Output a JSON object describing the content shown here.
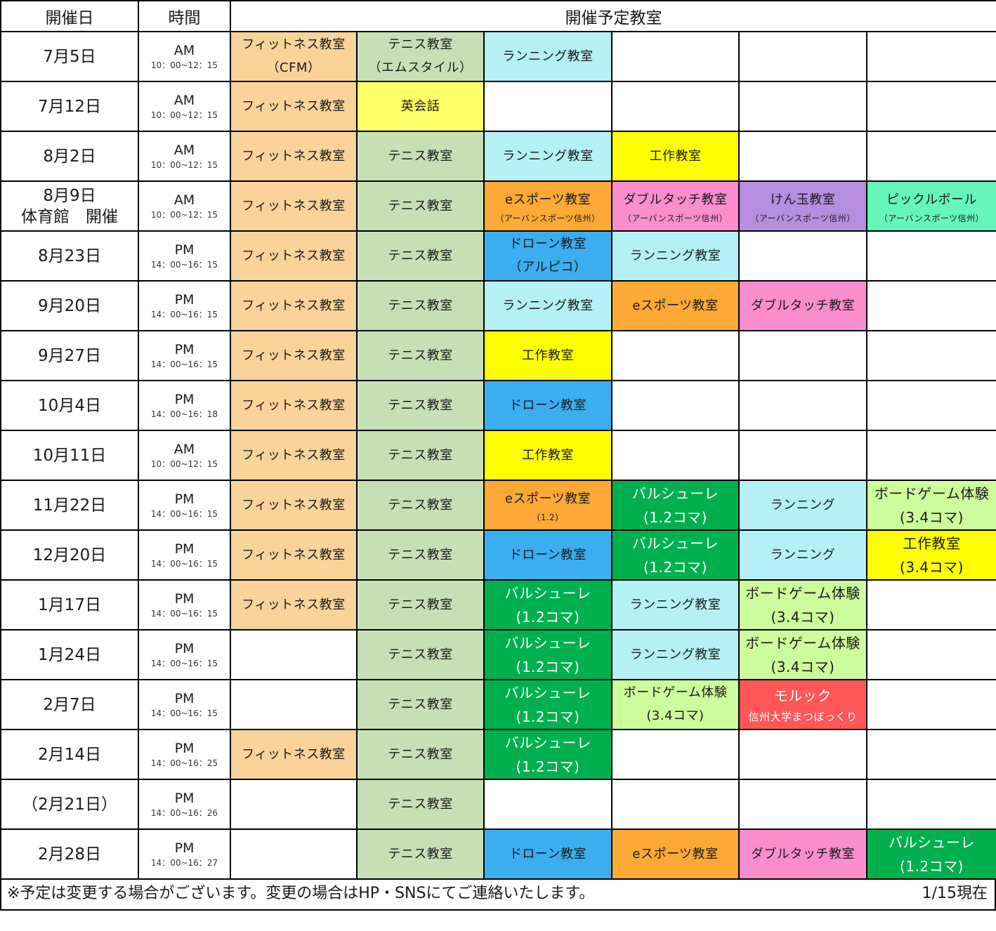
{
  "header": {
    "date_label": "開催日",
    "time_label": "時間",
    "classes_label": "開催予定教室"
  },
  "colors": {
    "fitness": "#F8D39A",
    "tennis": "#C6DFB4",
    "running": "#B5F0F7",
    "english": "#FFFF66",
    "craft": "#FFFF00",
    "esports": "#FCA935",
    "doubletouch": "#FA8ECD",
    "kendama": "#B68EDF",
    "pickleball": "#66F5BA",
    "drone": "#3AAEEF",
    "barcelona": "#00B04F",
    "boardgame": "#CDFC9C",
    "molkky": "#FF5757",
    "empty": "#FFFFFF"
  },
  "rows": [
    {
      "date": "7月5日",
      "date2": "",
      "ampm": "AM",
      "hours": "10：00~12：15",
      "cells": [
        {
          "l1": "フィットネス教室",
          "l2": "（CFM）",
          "sub": "",
          "color": "fitness",
          "style": "two"
        },
        {
          "l1": "テニス教室",
          "l2": "（エムスタイル）",
          "sub": "",
          "color": "tennis",
          "style": "two"
        },
        {
          "l1": "ランニング教室",
          "l2": "",
          "sub": "",
          "color": "running",
          "style": ""
        },
        {
          "l1": "",
          "l2": "",
          "sub": "",
          "color": "empty",
          "style": ""
        },
        {
          "l1": "",
          "l2": "",
          "sub": "",
          "color": "empty",
          "style": ""
        },
        {
          "l1": "",
          "l2": "",
          "sub": "",
          "color": "empty",
          "style": ""
        }
      ]
    },
    {
      "date": "7月12日",
      "date2": "",
      "ampm": "AM",
      "hours": "10：00~12：15",
      "cells": [
        {
          "l1": "フィットネス教室",
          "l2": "",
          "sub": "",
          "color": "fitness",
          "style": ""
        },
        {
          "l1": "英会話",
          "l2": "",
          "sub": "",
          "color": "english",
          "style": ""
        },
        {
          "l1": "",
          "l2": "",
          "sub": "",
          "color": "empty",
          "style": ""
        },
        {
          "l1": "",
          "l2": "",
          "sub": "",
          "color": "empty",
          "style": ""
        },
        {
          "l1": "",
          "l2": "",
          "sub": "",
          "color": "empty",
          "style": ""
        },
        {
          "l1": "",
          "l2": "",
          "sub": "",
          "color": "empty",
          "style": ""
        }
      ]
    },
    {
      "date": "8月2日",
      "date2": "",
      "ampm": "AM",
      "hours": "10：00~12：15",
      "cells": [
        {
          "l1": "フィットネス教室",
          "l2": "",
          "sub": "",
          "color": "fitness",
          "style": ""
        },
        {
          "l1": "テニス教室",
          "l2": "",
          "sub": "",
          "color": "tennis",
          "style": ""
        },
        {
          "l1": "ランニング教室",
          "l2": "",
          "sub": "",
          "color": "running",
          "style": ""
        },
        {
          "l1": "工作教室",
          "l2": "",
          "sub": "",
          "color": "craft",
          "style": ""
        },
        {
          "l1": "",
          "l2": "",
          "sub": "",
          "color": "empty",
          "style": ""
        },
        {
          "l1": "",
          "l2": "",
          "sub": "",
          "color": "empty",
          "style": ""
        }
      ]
    },
    {
      "date": "8月9日",
      "date2": "体育館　開催",
      "ampm": "AM",
      "hours": "10：00~12：15",
      "cells": [
        {
          "l1": "フィットネス教室",
          "l2": "",
          "sub": "",
          "color": "fitness",
          "style": ""
        },
        {
          "l1": "テニス教室",
          "l2": "",
          "sub": "",
          "color": "tennis",
          "style": ""
        },
        {
          "l1": "eスポーツ教室",
          "l2": "",
          "sub": "（アーバンスポーツ信州）",
          "color": "esports",
          "style": ""
        },
        {
          "l1": "ダブルタッチ教室",
          "l2": "",
          "sub": "（アーバンスポーツ信州）",
          "color": "doubletouch",
          "style": ""
        },
        {
          "l1": "けん玉教室",
          "l2": "",
          "sub": "（アーバンスポーツ信州）",
          "color": "kendama",
          "style": ""
        },
        {
          "l1": "ピックルボール",
          "l2": "",
          "sub": "（アーバンスポーツ信州）",
          "color": "pickleball",
          "style": ""
        }
      ]
    },
    {
      "date": "8月23日",
      "date2": "",
      "ampm": "PM",
      "hours": "14：00~16：15",
      "cells": [
        {
          "l1": "フィットネス教室",
          "l2": "",
          "sub": "",
          "color": "fitness",
          "style": ""
        },
        {
          "l1": "テニス教室",
          "l2": "",
          "sub": "",
          "color": "tennis",
          "style": ""
        },
        {
          "l1": "ドローン教室",
          "l2": "（アルピコ）",
          "sub": "",
          "color": "drone",
          "style": "two"
        },
        {
          "l1": "ランニング教室",
          "l2": "",
          "sub": "",
          "color": "running",
          "style": ""
        },
        {
          "l1": "",
          "l2": "",
          "sub": "",
          "color": "empty",
          "style": ""
        },
        {
          "l1": "",
          "l2": "",
          "sub": "",
          "color": "empty",
          "style": ""
        }
      ]
    },
    {
      "date": "9月20日",
      "date2": "",
      "ampm": "PM",
      "hours": "14：00~16：15",
      "cells": [
        {
          "l1": "フィットネス教室",
          "l2": "",
          "sub": "",
          "color": "fitness",
          "style": ""
        },
        {
          "l1": "テニス教室",
          "l2": "",
          "sub": "",
          "color": "tennis",
          "style": ""
        },
        {
          "l1": "ランニング教室",
          "l2": "",
          "sub": "",
          "color": "running",
          "style": ""
        },
        {
          "l1": "eスポーツ教室",
          "l2": "",
          "sub": "",
          "color": "esports",
          "style": ""
        },
        {
          "l1": "ダブルタッチ教室",
          "l2": "",
          "sub": "",
          "color": "doubletouch",
          "style": ""
        },
        {
          "l1": "",
          "l2": "",
          "sub": "",
          "color": "empty",
          "style": ""
        }
      ]
    },
    {
      "date": "9月27日",
      "date2": "",
      "ampm": "PM",
      "hours": "14：00~16：15",
      "cells": [
        {
          "l1": "フィットネス教室",
          "l2": "",
          "sub": "",
          "color": "fitness",
          "style": ""
        },
        {
          "l1": "テニス教室",
          "l2": "",
          "sub": "",
          "color": "tennis",
          "style": ""
        },
        {
          "l1": "工作教室",
          "l2": "",
          "sub": "",
          "color": "craft",
          "style": ""
        },
        {
          "l1": "",
          "l2": "",
          "sub": "",
          "color": "empty",
          "style": ""
        },
        {
          "l1": "",
          "l2": "",
          "sub": "",
          "color": "empty",
          "style": ""
        },
        {
          "l1": "",
          "l2": "",
          "sub": "",
          "color": "empty",
          "style": ""
        }
      ]
    },
    {
      "date": "10月4日",
      "date2": "",
      "ampm": "PM",
      "hours": "14：00~16：18",
      "cells": [
        {
          "l1": "フィットネス教室",
          "l2": "",
          "sub": "",
          "color": "fitness",
          "style": ""
        },
        {
          "l1": "テニス教室",
          "l2": "",
          "sub": "",
          "color": "tennis",
          "style": ""
        },
        {
          "l1": "ドローン教室",
          "l2": "",
          "sub": "",
          "color": "drone",
          "style": ""
        },
        {
          "l1": "",
          "l2": "",
          "sub": "",
          "color": "empty",
          "style": ""
        },
        {
          "l1": "",
          "l2": "",
          "sub": "",
          "color": "empty",
          "style": ""
        },
        {
          "l1": "",
          "l2": "",
          "sub": "",
          "color": "empty",
          "style": ""
        }
      ]
    },
    {
      "date": "10月11日",
      "date2": "",
      "ampm": "AM",
      "hours": "10：00~12：15",
      "cells": [
        {
          "l1": "フィットネス教室",
          "l2": "",
          "sub": "",
          "color": "fitness",
          "style": ""
        },
        {
          "l1": "テニス教室",
          "l2": "",
          "sub": "",
          "color": "tennis",
          "style": ""
        },
        {
          "l1": "工作教室",
          "l2": "",
          "sub": "",
          "color": "craft",
          "style": ""
        },
        {
          "l1": "",
          "l2": "",
          "sub": "",
          "color": "empty",
          "style": ""
        },
        {
          "l1": "",
          "l2": "",
          "sub": "",
          "color": "empty",
          "style": ""
        },
        {
          "l1": "",
          "l2": "",
          "sub": "",
          "color": "empty",
          "style": ""
        }
      ]
    },
    {
      "date": "11月22日",
      "date2": "",
      "ampm": "PM",
      "hours": "14：00~16：15",
      "cells": [
        {
          "l1": "フィットネス教室",
          "l2": "",
          "sub": "",
          "color": "fitness",
          "style": ""
        },
        {
          "l1": "テニス教室",
          "l2": "",
          "sub": "",
          "color": "tennis",
          "style": ""
        },
        {
          "l1": "eスポーツ教室",
          "l2": "",
          "sub": "(1.2)",
          "color": "esports",
          "style": ""
        },
        {
          "l1": "バルシューレ",
          "l2": "(1.2コマ)",
          "sub": "",
          "color": "barcelona",
          "style": "big white"
        },
        {
          "l1": "ランニング",
          "l2": "",
          "sub": "",
          "color": "running",
          "style": ""
        },
        {
          "l1": "ボードゲーム体験",
          "l2": "(3.4コマ)",
          "sub": "",
          "color": "boardgame",
          "style": "big"
        }
      ]
    },
    {
      "date": "12月20日",
      "date2": "",
      "ampm": "PM",
      "hours": "14：00~16：15",
      "cells": [
        {
          "l1": "フィットネス教室",
          "l2": "",
          "sub": "",
          "color": "fitness",
          "style": ""
        },
        {
          "l1": "テニス教室",
          "l2": "",
          "sub": "",
          "color": "tennis",
          "style": ""
        },
        {
          "l1": "ドローン教室",
          "l2": "",
          "sub": "",
          "color": "drone",
          "style": ""
        },
        {
          "l1": "バルシューレ",
          "l2": "(1.2コマ)",
          "sub": "",
          "color": "barcelona",
          "style": "big white"
        },
        {
          "l1": "ランニング",
          "l2": "",
          "sub": "",
          "color": "running",
          "style": ""
        },
        {
          "l1": "工作教室",
          "l2": "(3.4コマ)",
          "sub": "",
          "color": "craft",
          "style": "big"
        }
      ]
    },
    {
      "date": "1月17日",
      "date2": "",
      "ampm": "PM",
      "hours": "14：00~16：15",
      "cells": [
        {
          "l1": "フィットネス教室",
          "l2": "",
          "sub": "",
          "color": "fitness",
          "style": ""
        },
        {
          "l1": "テニス教室",
          "l2": "",
          "sub": "",
          "color": "tennis",
          "style": ""
        },
        {
          "l1": "バルシューレ",
          "l2": "(1.2コマ)",
          "sub": "",
          "color": "barcelona",
          "style": "big white"
        },
        {
          "l1": "ランニング教室",
          "l2": "",
          "sub": "",
          "color": "running",
          "style": ""
        },
        {
          "l1": "ボードゲーム体験",
          "l2": "(3.4コマ)",
          "sub": "",
          "color": "boardgame",
          "style": "big"
        },
        {
          "l1": "",
          "l2": "",
          "sub": "",
          "color": "empty",
          "style": ""
        }
      ]
    },
    {
      "date": "1月24日",
      "date2": "",
      "ampm": "PM",
      "hours": "14：00~16：15",
      "cells": [
        {
          "l1": "",
          "l2": "",
          "sub": "",
          "color": "empty",
          "style": ""
        },
        {
          "l1": "テニス教室",
          "l2": "",
          "sub": "",
          "color": "tennis",
          "style": ""
        },
        {
          "l1": "バルシューレ",
          "l2": "(1.2コマ)",
          "sub": "",
          "color": "barcelona",
          "style": "big white"
        },
        {
          "l1": "ランニング教室",
          "l2": "",
          "sub": "",
          "color": "running",
          "style": ""
        },
        {
          "l1": "ボードゲーム体験",
          "l2": "(3.4コマ)",
          "sub": "",
          "color": "boardgame",
          "style": "big"
        },
        {
          "l1": "",
          "l2": "",
          "sub": "",
          "color": "empty",
          "style": ""
        }
      ]
    },
    {
      "date": "2月7日",
      "date2": "",
      "ampm": "PM",
      "hours": "14：00~16：15",
      "cells": [
        {
          "l1": "",
          "l2": "",
          "sub": "",
          "color": "empty",
          "style": ""
        },
        {
          "l1": "テニス教室",
          "l2": "",
          "sub": "",
          "color": "tennis",
          "style": ""
        },
        {
          "l1": "バルシューレ",
          "l2": "(1.2コマ)",
          "sub": "",
          "color": "barcelona",
          "style": "big white"
        },
        {
          "l1": "ボードゲーム体験",
          "l2": "(3.4コマ)",
          "sub": "",
          "color": "boardgame",
          "style": "two"
        },
        {
          "l1": "モルック",
          "l2": "信州大学まつぼっくり",
          "sub": "",
          "color": "molkky",
          "style": "molkky white"
        },
        {
          "l1": "",
          "l2": "",
          "sub": "",
          "color": "empty",
          "style": ""
        }
      ]
    },
    {
      "date": "2月14日",
      "date2": "",
      "ampm": "PM",
      "hours": "14：00~16：25",
      "cells": [
        {
          "l1": "フィットネス教室",
          "l2": "",
          "sub": "",
          "color": "fitness",
          "style": ""
        },
        {
          "l1": "テニス教室",
          "l2": "",
          "sub": "",
          "color": "tennis",
          "style": ""
        },
        {
          "l1": "バルシューレ",
          "l2": "(1.2コマ)",
          "sub": "",
          "color": "barcelona",
          "style": "big white"
        },
        {
          "l1": "",
          "l2": "",
          "sub": "",
          "color": "empty",
          "style": ""
        },
        {
          "l1": "",
          "l2": "",
          "sub": "",
          "color": "empty",
          "style": ""
        },
        {
          "l1": "",
          "l2": "",
          "sub": "",
          "color": "empty",
          "style": ""
        }
      ]
    },
    {
      "date": "（2月21日）",
      "date2": "",
      "ampm": "PM",
      "hours": "14：00~16：26",
      "cells": [
        {
          "l1": "",
          "l2": "",
          "sub": "",
          "color": "empty",
          "style": ""
        },
        {
          "l1": "テニス教室",
          "l2": "",
          "sub": "",
          "color": "tennis",
          "style": ""
        },
        {
          "l1": "",
          "l2": "",
          "sub": "",
          "color": "empty",
          "style": ""
        },
        {
          "l1": "",
          "l2": "",
          "sub": "",
          "color": "empty",
          "style": ""
        },
        {
          "l1": "",
          "l2": "",
          "sub": "",
          "color": "empty",
          "style": ""
        },
        {
          "l1": "",
          "l2": "",
          "sub": "",
          "color": "empty",
          "style": ""
        }
      ]
    },
    {
      "date": "2月28日",
      "date2": "",
      "ampm": "PM",
      "hours": "14：00~16：27",
      "cells": [
        {
          "l1": "",
          "l2": "",
          "sub": "",
          "color": "empty",
          "style": ""
        },
        {
          "l1": "テニス教室",
          "l2": "",
          "sub": "",
          "color": "tennis",
          "style": ""
        },
        {
          "l1": "ドローン教室",
          "l2": "",
          "sub": "",
          "color": "drone",
          "style": ""
        },
        {
          "l1": "eスポーツ教室",
          "l2": "",
          "sub": "",
          "color": "esports",
          "style": ""
        },
        {
          "l1": "ダブルタッチ教室",
          "l2": "",
          "sub": "",
          "color": "doubletouch",
          "style": ""
        },
        {
          "l1": "バルシューレ",
          "l2": "(1.2コマ)",
          "sub": "",
          "color": "barcelona",
          "style": "big white"
        }
      ]
    }
  ],
  "footer": {
    "note": "※予定は変更する場合がございます。変更の場合はHP・SNSにてご連絡いたします。",
    "as_of": "1/15現在"
  }
}
